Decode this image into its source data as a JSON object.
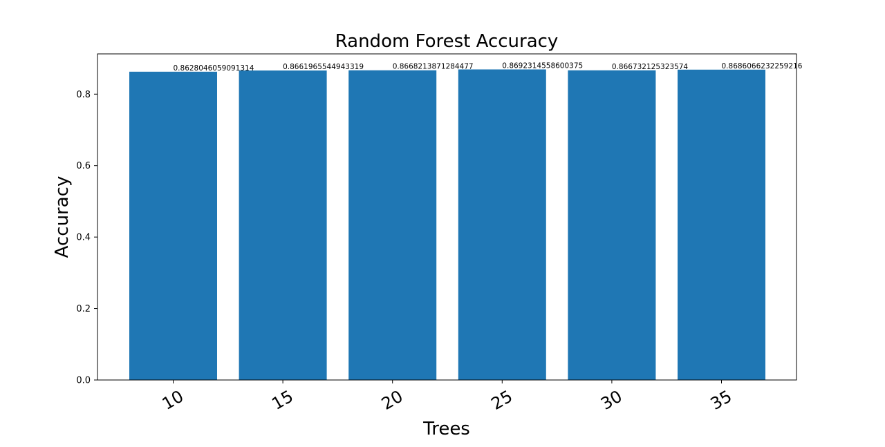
{
  "chart_data": {
    "type": "bar",
    "title": "Random Forest Accuracy",
    "xlabel": "Trees",
    "ylabel": "Accuracy",
    "categories": [
      "10",
      "15",
      "20",
      "25",
      "30",
      "35"
    ],
    "values": [
      0.8628046059091314,
      0.8661965544943319,
      0.8668213871284477,
      0.8692314558600375,
      0.866732125323574,
      0.8686066232259216
    ],
    "data_labels": [
      "0.8628046059091314",
      "0.8661965544943319",
      "0.8668213871284477",
      "0.8692314558600375",
      "0.866732125323574",
      "0.8686066232259216"
    ],
    "yticks": [
      0.0,
      0.2,
      0.4,
      0.6,
      0.8
    ],
    "ytick_labels": [
      "0.0",
      "0.2",
      "0.4",
      "0.6",
      "0.8"
    ],
    "ylim": [
      0,
      0.9127
    ],
    "bar_color": "#1f77b4",
    "grid": false,
    "xtick_rotation": 30
  }
}
